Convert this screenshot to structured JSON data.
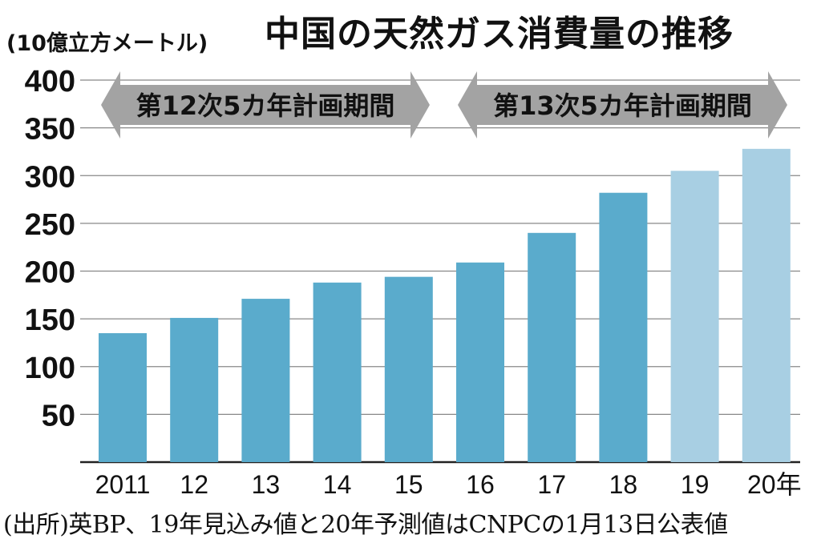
{
  "chart_data": {
    "type": "bar",
    "title": "中国の天然ガス消費量の推移",
    "unit_label": "(10億立方メートル)",
    "categories": [
      "2011",
      "12",
      "13",
      "14",
      "15",
      "16",
      "17",
      "18",
      "19",
      "20年"
    ],
    "values": [
      135,
      151,
      171,
      188,
      194,
      209,
      240,
      282,
      305,
      328
    ],
    "estimated": [
      false,
      false,
      false,
      false,
      false,
      false,
      false,
      false,
      true,
      true
    ],
    "y_ticks": [
      50,
      100,
      150,
      200,
      250,
      300,
      350,
      400
    ],
    "ylim": [
      0,
      400
    ],
    "grid": true,
    "colors": {
      "actual": "#5aabcc",
      "forecast": "#a8cfe3",
      "arrow": "#a3a3a3",
      "grid": "#888888"
    },
    "periods": [
      {
        "label": "第12次5カ年計画期間",
        "from": 0,
        "to": 4
      },
      {
        "label": "第13次5カ年計画期間",
        "from": 5,
        "to": 9
      }
    ]
  },
  "source": "(出所)英BP、19年見込み値と20年予測値はCNPCの1月13日公表値"
}
